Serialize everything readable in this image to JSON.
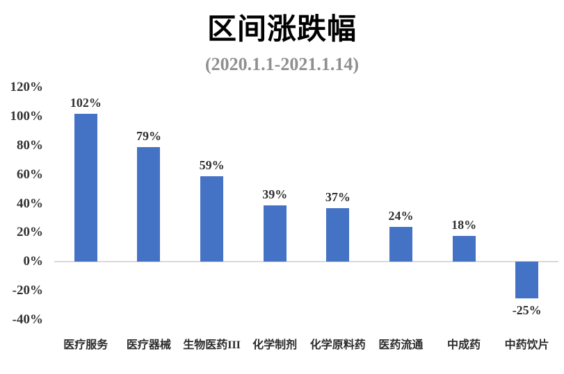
{
  "chart_data": {
    "type": "bar",
    "title": "区间涨跌幅",
    "subtitle": "(2020.1.1-2021.1.14)",
    "categories": [
      "医疗服务",
      "医疗器械",
      "生物医药III",
      "化学制剂",
      "化学原料药",
      "医药流通",
      "中成药",
      "中药饮片"
    ],
    "values": [
      102,
      79,
      59,
      39,
      37,
      24,
      18,
      -25
    ],
    "data_labels": [
      "102%",
      "79%",
      "59%",
      "39%",
      "37%",
      "24%",
      "18%",
      "-25%"
    ],
    "xlabel": "",
    "ylabel": "",
    "ylim": [
      -40,
      120
    ],
    "ytick_step": 20,
    "yticks": [
      {
        "value": 120,
        "label": "120%"
      },
      {
        "value": 100,
        "label": "100%"
      },
      {
        "value": 80,
        "label": "80%"
      },
      {
        "value": 60,
        "label": "60%"
      },
      {
        "value": 40,
        "label": "40%"
      },
      {
        "value": 20,
        "label": "20%"
      },
      {
        "value": 0,
        "label": "0%"
      },
      {
        "value": -20,
        "label": "-20%"
      },
      {
        "value": -40,
        "label": "-40%"
      }
    ],
    "grid": "zero-baseline-only",
    "legend": "none"
  },
  "colors": {
    "bar": "#4472C4",
    "zero_line": "#D9D9D9",
    "title_text": "#000000",
    "subtitle_text": "#8F8F8F",
    "axis_text": "#333333",
    "background": "#FFFFFF"
  }
}
